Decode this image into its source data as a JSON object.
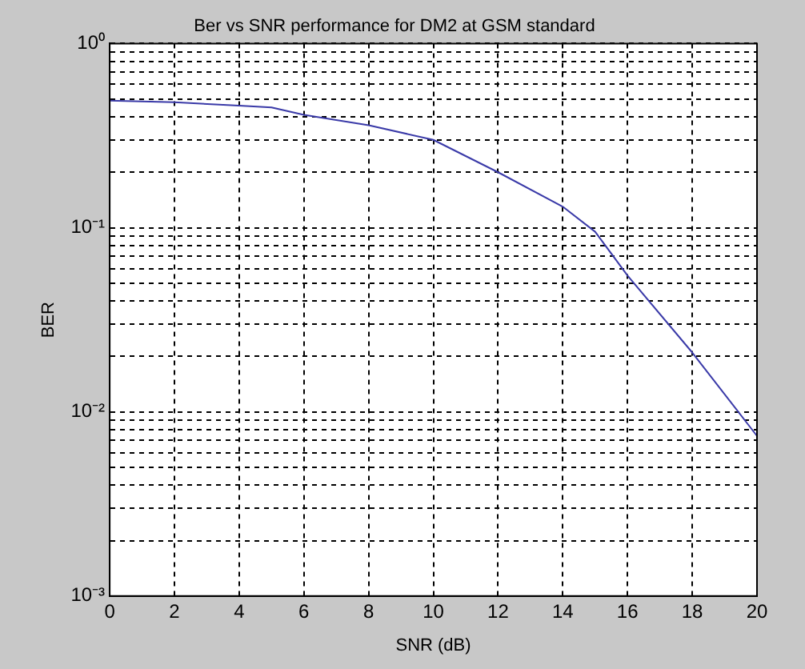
{
  "chart_data": {
    "type": "line",
    "title": "Ber vs SNR performance for DM2 at GSM standard",
    "xlabel": "SNR (dB)",
    "ylabel": "BER",
    "x": [
      0,
      2,
      4,
      5,
      6,
      8,
      10,
      12,
      14,
      15,
      16,
      18,
      20
    ],
    "series": [
      {
        "color": "#3a3aa8",
        "values": [
          0.49,
          0.48,
          0.46,
          0.45,
          0.41,
          0.36,
          0.3,
          0.2,
          0.13,
          0.095,
          0.055,
          0.021,
          0.0074
        ]
      }
    ],
    "xlim": [
      0,
      20
    ],
    "xticks": [
      0,
      2,
      4,
      6,
      8,
      10,
      12,
      14,
      16,
      18,
      20
    ],
    "ylim": [
      0.001,
      1
    ],
    "yticks": [
      {
        "value": 0.001,
        "label": "10⁻³"
      },
      {
        "value": 0.01,
        "label": "10⁻²"
      },
      {
        "value": 0.1,
        "label": "10⁻¹"
      },
      {
        "value": 1,
        "label": "10⁰"
      }
    ],
    "log": "y",
    "grid": true,
    "legend": false,
    "marker": "none",
    "line_style": "solid"
  }
}
